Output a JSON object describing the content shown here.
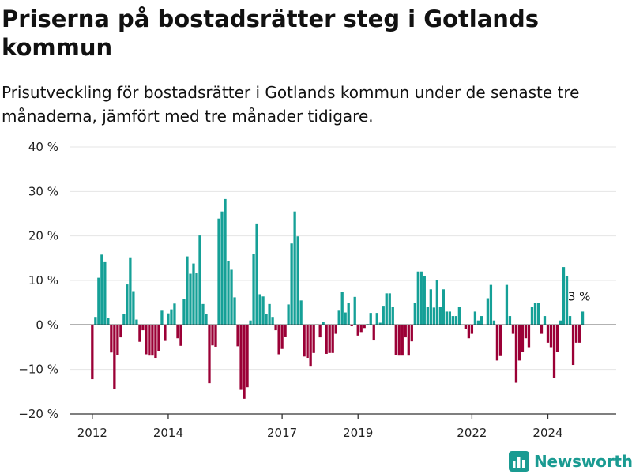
{
  "title": "Priserna på bostadsrätter steg i Gotlands kommun",
  "subtitle": "Prisutveckling för bostadsrätter i Gotlands kommun under de senaste tre månaderna, jämfört med tre månader tidigare.",
  "brand": "Newsworthy",
  "colors": {
    "positive": "#15a097",
    "negative": "#9b0036",
    "grid": "#e4e4e4",
    "axis": "#333333"
  },
  "chart_data": {
    "type": "bar",
    "title": "Priserna på bostadsrätter steg i Gotlands kommun",
    "xlabel": "",
    "ylabel": "",
    "ylim": [
      -20,
      40
    ],
    "yticks": [
      40,
      30,
      20,
      10,
      0,
      -10,
      -20
    ],
    "ytick_labels": [
      "40 %",
      "30 %",
      "20 %",
      "10 %",
      "0 %",
      "−10 %",
      "−20 %"
    ],
    "xlim": [
      2011.4,
      2025.8
    ],
    "xticks": [
      2012,
      2014,
      2017,
      2019,
      2022,
      2024
    ],
    "xtick_labels": [
      "2012",
      "2014",
      "2017",
      "2019",
      "2022",
      "2024"
    ],
    "grid": true,
    "annotation": {
      "text": "3 %",
      "year": 2024.86,
      "value": 3
    },
    "start": {
      "year": 2012,
      "month": 1
    },
    "unit": "%",
    "values": [
      -12.2,
      1.8,
      10.6,
      15.8,
      14.1,
      1.6,
      -6.2,
      -14.5,
      -6.8,
      -2.8,
      2.4,
      9.1,
      15.2,
      7.6,
      1.2,
      -3.8,
      -1.2,
      -6.6,
      -6.9,
      -6.9,
      -7.4,
      -5.8,
      3.2,
      -3.6,
      2.6,
      3.5,
      4.8,
      -3.0,
      -4.7,
      5.8,
      15.4,
      11.5,
      13.8,
      11.6,
      20.1,
      4.7,
      2.4,
      -13.1,
      -4.6,
      -4.9,
      23.9,
      25.5,
      28.3,
      14.3,
      12.4,
      6.2,
      -4.8,
      -14.6,
      -16.6,
      -14.0,
      1.0,
      16.0,
      22.8,
      6.9,
      6.4,
      2.5,
      4.7,
      1.8,
      -1.2,
      -6.6,
      -5.4,
      -2.6,
      4.6,
      18.3,
      25.5,
      19.9,
      5.5,
      -7.1,
      -7.4,
      -9.2,
      -6.3,
      0.0,
      -2.8,
      0.7,
      -6.5,
      -6.3,
      -6.3,
      -2.0,
      3.2,
      7.4,
      2.8,
      4.9,
      -0.3,
      6.3,
      -2.4,
      -1.6,
      -0.7,
      0.2,
      2.7,
      -3.5,
      2.7,
      0.5,
      4.3,
      7.1,
      7.1,
      4.0,
      -6.8,
      -6.9,
      -6.9,
      -2.8,
      -6.9,
      -3.7,
      5.0,
      12.0,
      12.0,
      11.0,
      4.0,
      8.0,
      3.9,
      10.0,
      4.0,
      8.0,
      3.0,
      3.0,
      2.0,
      2.0,
      4.0,
      0.0,
      -1.0,
      -3.0,
      -2.0,
      3.0,
      1.0,
      2.0,
      0.0,
      6.0,
      9.0,
      1.0,
      -8.0,
      -7.0,
      0.0,
      9.0,
      2.0,
      -2.0,
      -13.0,
      -8.0,
      -6.0,
      -3.0,
      -5.0,
      4.0,
      5.0,
      5.0,
      -2.0,
      2.0,
      -4.0,
      -5.0,
      -12.0,
      -6.0,
      1.0,
      13.0,
      11.0,
      2.0,
      -9.0,
      -4.0,
      -4.0,
      3.0
    ]
  }
}
